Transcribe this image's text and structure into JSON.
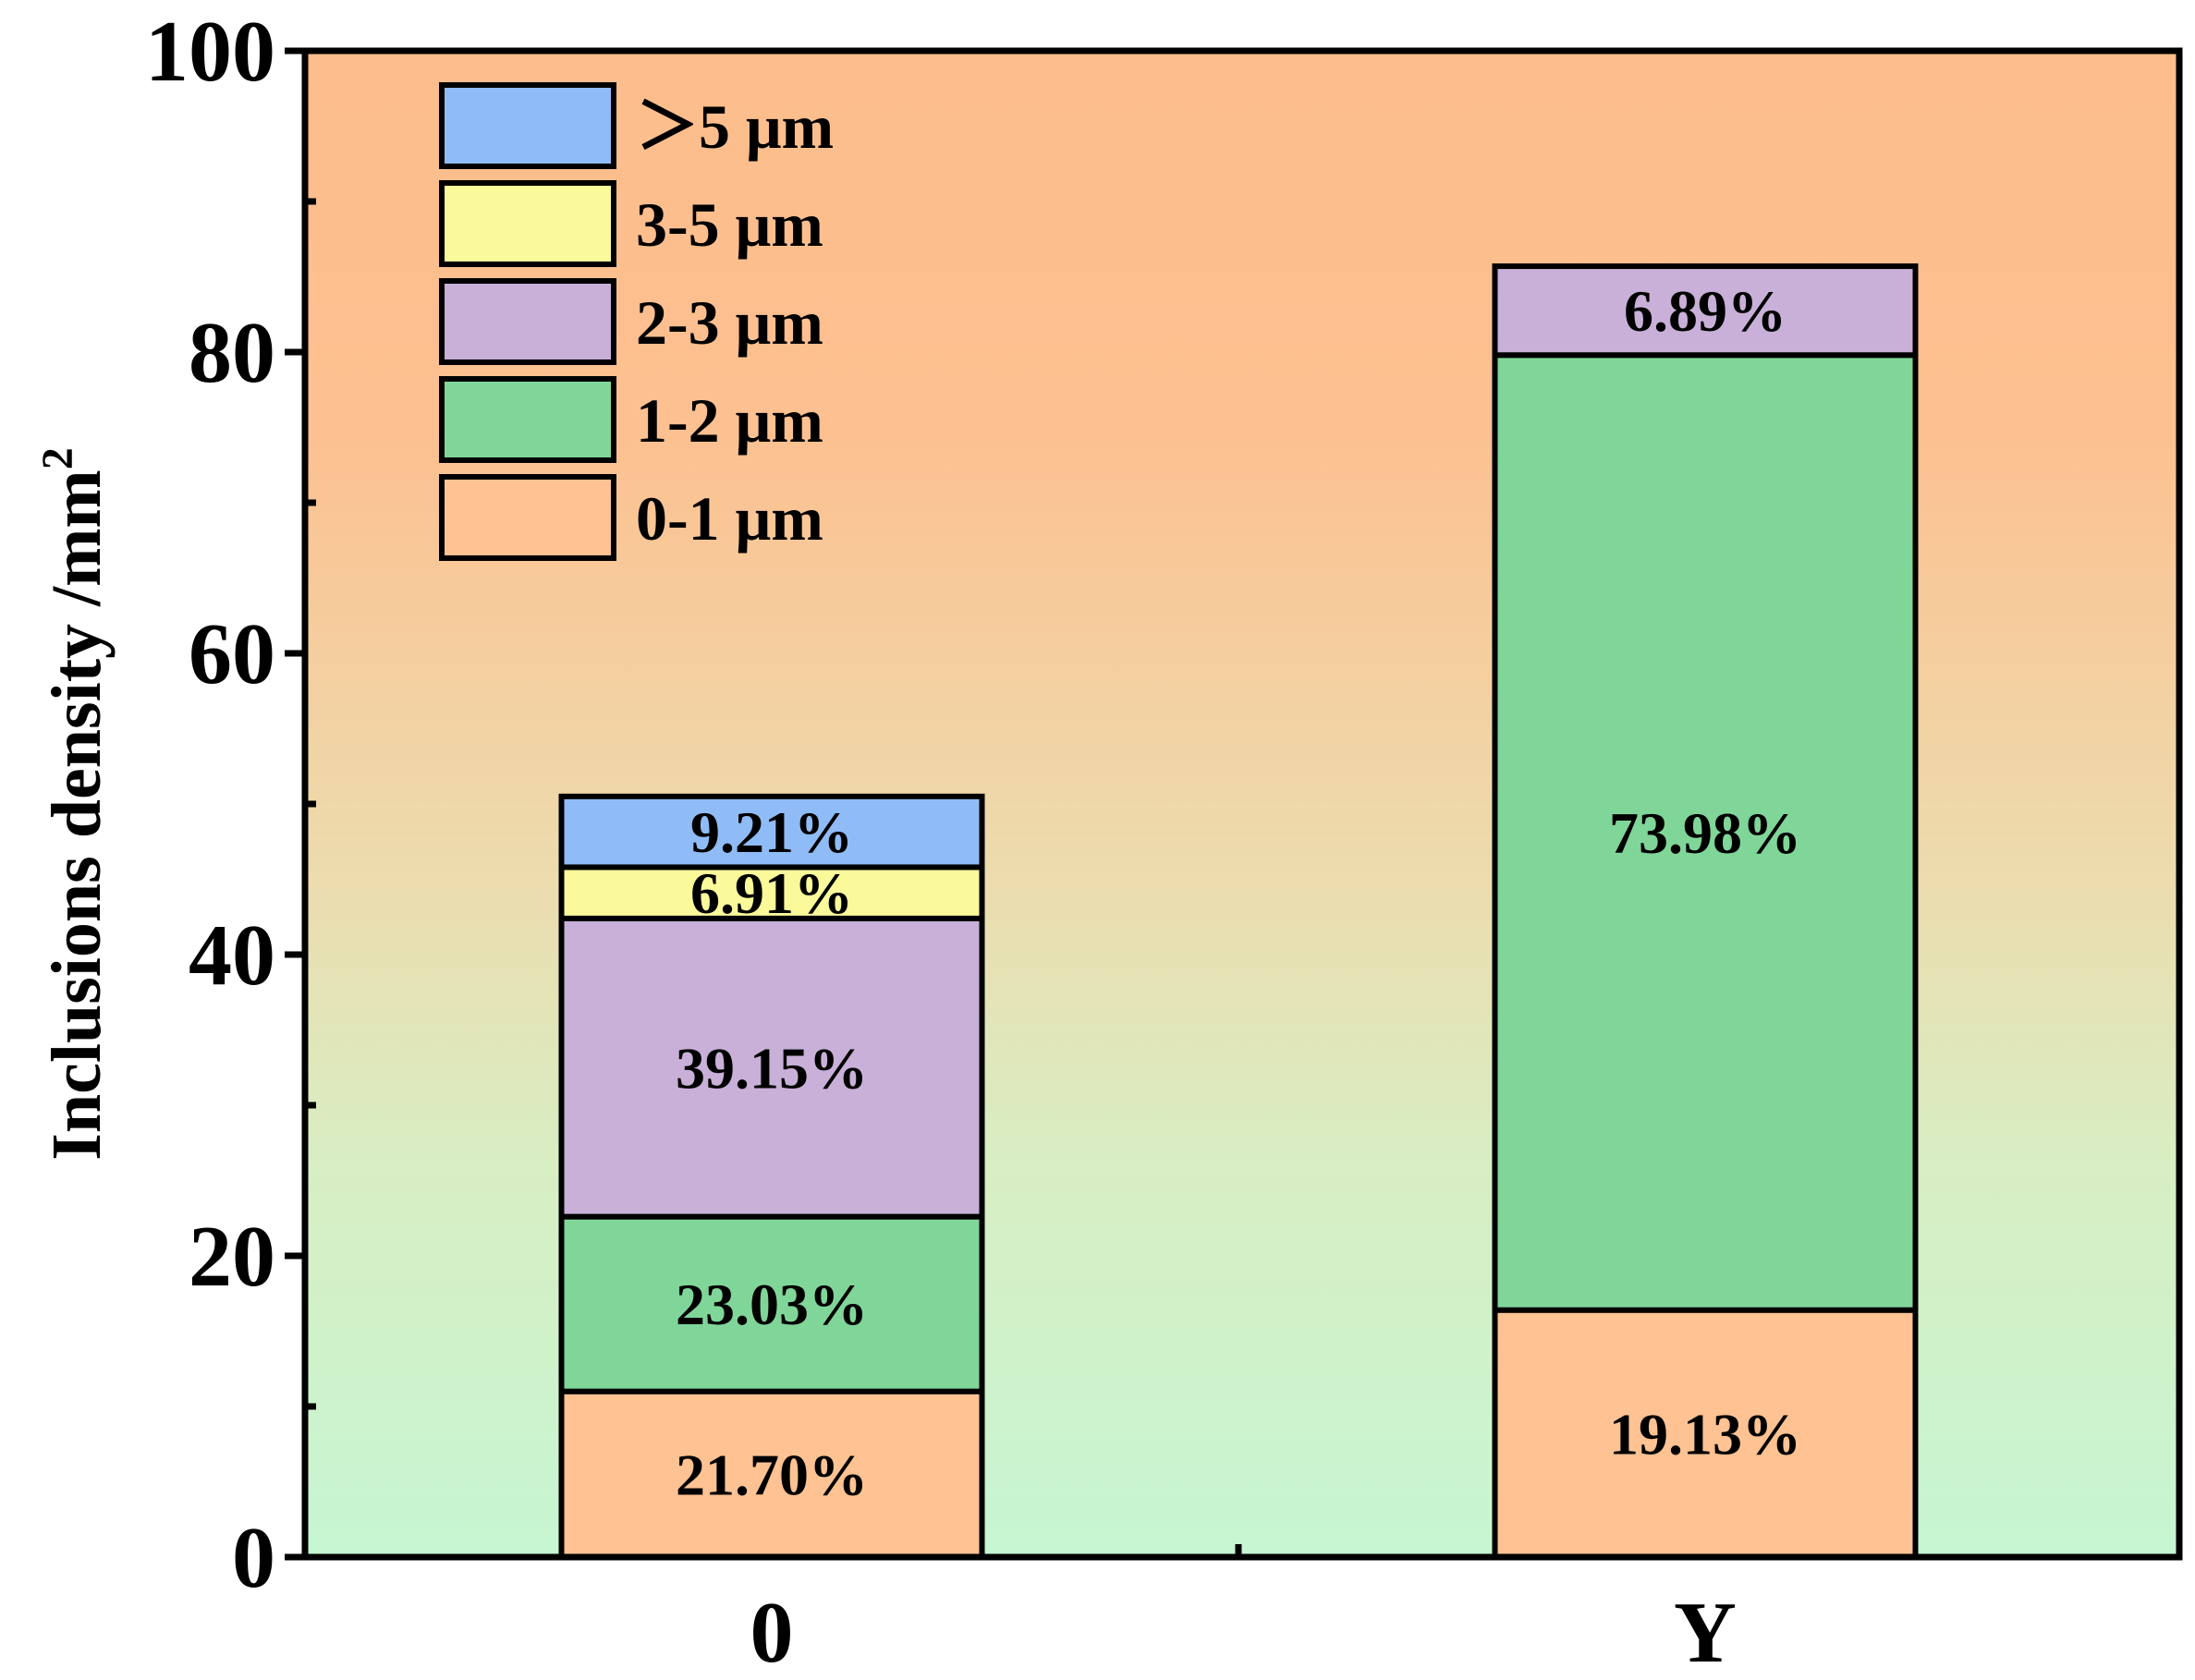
{
  "chart_data": {
    "type": "bar",
    "stacked": true,
    "title": "",
    "xlabel": "",
    "ylabel": "Inclusions density /mm",
    "ylabel_superscript": "2",
    "ylim": [
      0,
      100
    ],
    "yticks": [
      "0",
      "20",
      "40",
      "60",
      "80",
      "100"
    ],
    "categories": [
      "0",
      "Y"
    ],
    "series": [
      {
        "name": "0-1 μm",
        "color": "#fec293",
        "values": [
          11.0,
          16.4
        ],
        "labels": [
          "21.70%",
          "19.13%"
        ]
      },
      {
        "name": "1-2 μm",
        "color": "#80d699",
        "values": [
          11.6,
          63.4
        ],
        "labels": [
          "23.03%",
          "73.98%"
        ]
      },
      {
        "name": "2-3 μm",
        "color": "#c8b0d8",
        "values": [
          19.8,
          5.9
        ],
        "labels": [
          "39.15%",
          "6.89%"
        ]
      },
      {
        "name": "3-5 μm",
        "color": "#fbfa9a",
        "values": [
          3.4,
          0
        ],
        "labels": [
          "6.91%",
          ""
        ]
      },
      {
        "name": "＞5 μm",
        "color": "#8fbcf6",
        "values": [
          4.7,
          0
        ],
        "labels": [
          "9.21%",
          ""
        ]
      }
    ],
    "legend_position": "top-left",
    "legend_order": [
      "＞5 μm",
      "3-5 μm",
      "2-3 μm",
      "1-2 μm",
      "0-1 μm"
    ],
    "background_gradient": {
      "top": "#fdbd8c",
      "middle": "#ecdcae",
      "bottom": "#c6f6d2"
    }
  }
}
